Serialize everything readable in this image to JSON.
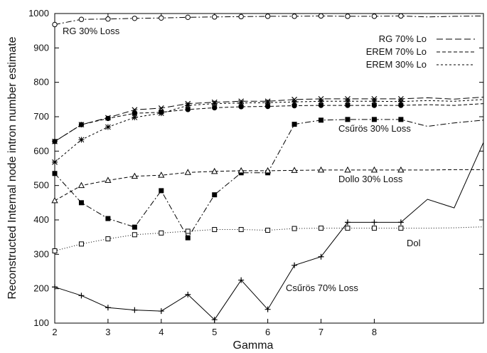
{
  "chart_data": {
    "type": "line",
    "title": "",
    "xlabel": "Gamma",
    "ylabel": "Reconstructed Internal node intron number estimate",
    "xlim": [
      2,
      10.05
    ],
    "ylim": [
      100,
      1000
    ],
    "xticks": [
      "2",
      "3",
      "4",
      "5",
      "6",
      "7",
      "8"
    ],
    "yticks": [
      "100",
      "200",
      "300",
      "400",
      "500",
      "600",
      "700",
      "800",
      "900",
      "1000"
    ],
    "legend": [
      "RG 70% Lo",
      "EREM 70% Lo",
      "EREM 30% Lo"
    ],
    "annotations": [
      "RG 30% Loss",
      "Csűrös 30% Loss",
      "Dollo 30% Loss",
      "Dol",
      "Csűrös 70% Loss"
    ],
    "series": [
      {
        "name": "RG 30% Loss",
        "style": "dashdot",
        "marker": "circle",
        "x": [
          2,
          2.5,
          3,
          3.5,
          4,
          4.5,
          5,
          5.5,
          6,
          6.5,
          7,
          7.5,
          8,
          8.5,
          9,
          9.5,
          10.05
        ],
        "y": [
          968,
          983,
          984,
          986,
          987,
          989,
          990,
          991,
          992,
          992,
          993,
          992,
          992,
          993,
          990,
          992,
          993
        ],
        "markers": [
          true,
          true,
          true,
          true,
          true,
          true,
          true,
          true,
          true,
          true,
          true,
          true,
          true,
          true,
          false,
          false,
          false
        ]
      },
      {
        "name": "RG 70% Lo",
        "style": "longdash",
        "marker": "x",
        "x": [
          2,
          2.5,
          3,
          3.5,
          4,
          4.5,
          5,
          5.5,
          6,
          6.5,
          7,
          7.5,
          8,
          8.5,
          9,
          9.5,
          10.05
        ],
        "y": [
          628,
          677,
          697,
          720,
          725,
          738,
          742,
          745,
          745,
          750,
          752,
          752,
          752,
          752,
          755,
          751,
          757
        ],
        "markers": [
          true,
          true,
          true,
          true,
          true,
          true,
          true,
          true,
          true,
          true,
          true,
          true,
          true,
          true,
          false,
          false,
          false
        ]
      },
      {
        "name": "EREM 70% Lo",
        "style": "dashed",
        "marker": "dot",
        "x": [
          2,
          2.5,
          3,
          3.5,
          4,
          4.5,
          5,
          5.5,
          6,
          6.5,
          7,
          7.5,
          8,
          8.5,
          9,
          9.5,
          10.05
        ],
        "y": [
          628,
          677,
          695,
          710,
          713,
          721,
          726,
          729,
          730,
          732,
          733,
          733,
          733,
          733,
          735,
          733,
          738
        ],
        "markers": [
          true,
          true,
          true,
          true,
          true,
          true,
          true,
          true,
          true,
          true,
          true,
          true,
          true,
          true,
          false,
          false,
          false
        ]
      },
      {
        "name": "EREM 30% Lo",
        "style": "finedash",
        "marker": "star",
        "x": [
          2,
          2.5,
          3,
          3.5,
          4,
          4.5,
          5,
          5.5,
          6,
          6.5,
          7,
          7.5,
          8,
          8.5,
          9,
          9.5,
          10.05
        ],
        "y": [
          568,
          633,
          670,
          698,
          710,
          733,
          738,
          740,
          741,
          743,
          745,
          745,
          745,
          744,
          747,
          745,
          750
        ],
        "markers": [
          true,
          true,
          true,
          true,
          true,
          true,
          true,
          true,
          true,
          true,
          true,
          true,
          true,
          true,
          false,
          false,
          false
        ]
      },
      {
        "name": "Csűrös 30% Loss",
        "style": "dashdot",
        "marker": "square-filled",
        "x": [
          2,
          2.5,
          3,
          3.5,
          4,
          4.5,
          5,
          5.5,
          6,
          6.5,
          7,
          7.5,
          8,
          8.5,
          9,
          9.5,
          10.05
        ],
        "y": [
          535,
          450,
          404,
          379,
          485,
          348,
          473,
          537,
          537,
          678,
          690,
          692,
          692,
          692,
          672,
          682,
          690
        ],
        "markers": [
          true,
          true,
          true,
          true,
          true,
          true,
          true,
          true,
          true,
          true,
          true,
          true,
          true,
          true,
          false,
          false,
          false
        ]
      },
      {
        "name": "Dollo 30% Loss",
        "style": "dashed",
        "marker": "triangle",
        "x": [
          2,
          2.5,
          3,
          3.5,
          4,
          4.5,
          5,
          5.5,
          6,
          6.5,
          7,
          7.5,
          8,
          8.5,
          9,
          9.5,
          10.05
        ],
        "y": [
          456,
          500,
          515,
          527,
          530,
          538,
          541,
          543,
          543,
          544,
          545,
          545,
          545,
          545,
          545,
          546,
          546
        ],
        "markers": [
          true,
          true,
          true,
          true,
          true,
          true,
          true,
          true,
          true,
          true,
          true,
          true,
          true,
          true,
          false,
          false,
          false
        ]
      },
      {
        "name": "Dol",
        "style": "dotted",
        "marker": "square-open",
        "x": [
          2,
          2.5,
          3,
          3.5,
          4,
          4.5,
          5,
          5.5,
          6,
          6.5,
          7,
          7.5,
          8,
          8.5,
          9,
          9.5,
          10.05
        ],
        "y": [
          310,
          330,
          345,
          357,
          362,
          367,
          372,
          372,
          370,
          375,
          376,
          376,
          376,
          376,
          376,
          377,
          380
        ],
        "markers": [
          true,
          true,
          true,
          true,
          true,
          true,
          true,
          true,
          true,
          true,
          true,
          true,
          true,
          true,
          false,
          false,
          false
        ]
      },
      {
        "name": "Csűrös 70% Loss",
        "style": "solid",
        "marker": "plus",
        "x": [
          2,
          2.5,
          3,
          3.5,
          4,
          4.5,
          5,
          5.5,
          6,
          6.5,
          7,
          7.5,
          8,
          8.5,
          9,
          9.5,
          10.05
        ],
        "y": [
          205,
          180,
          145,
          138,
          135,
          183,
          110,
          225,
          140,
          268,
          293,
          393,
          393,
          393,
          460,
          435,
          625
        ],
        "markers": [
          true,
          true,
          true,
          true,
          true,
          true,
          true,
          true,
          true,
          true,
          true,
          true,
          true,
          true,
          false,
          false,
          false
        ]
      }
    ]
  }
}
